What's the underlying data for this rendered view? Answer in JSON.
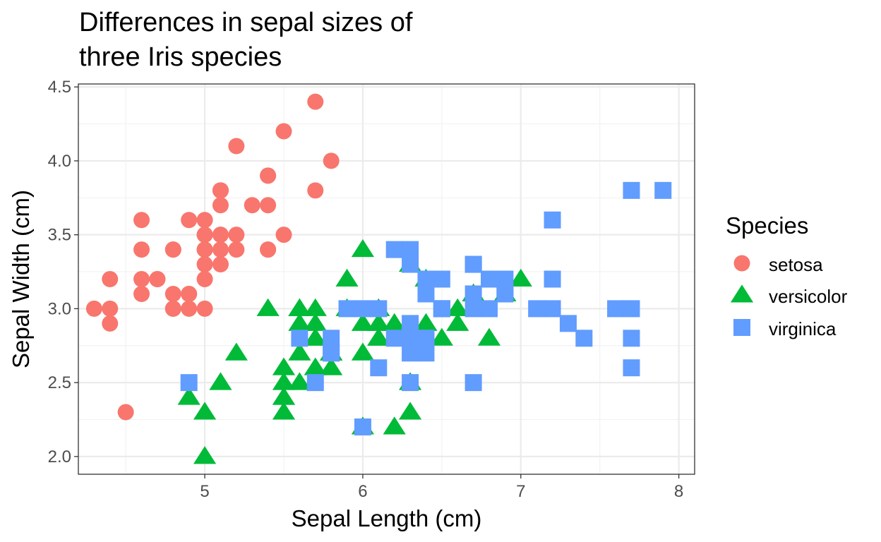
{
  "chart_data": {
    "type": "scatter",
    "title_lines": [
      "Differences in sepal sizes of",
      "three Iris species"
    ],
    "xlabel": "Sepal Length (cm)",
    "ylabel": "Sepal Width (cm)",
    "xlim": [
      4.2,
      8.1
    ],
    "ylim": [
      1.88,
      4.52
    ],
    "xticks": [
      5,
      6,
      7,
      8
    ],
    "xtick_labels": [
      "5",
      "6",
      "7",
      "8"
    ],
    "yticks": [
      2.0,
      2.5,
      3.0,
      3.5,
      4.0,
      4.5
    ],
    "ytick_labels": [
      "2.0",
      "2.5",
      "3.0",
      "3.5",
      "4.0",
      "4.5"
    ],
    "grid": true,
    "legend": {
      "title": "Species",
      "position": "right"
    },
    "series": [
      {
        "name": "setosa",
        "color": "#F8766D",
        "shape": "circle",
        "points": [
          [
            5.1,
            3.5
          ],
          [
            4.9,
            3.0
          ],
          [
            4.7,
            3.2
          ],
          [
            4.6,
            3.1
          ],
          [
            5.0,
            3.6
          ],
          [
            5.4,
            3.9
          ],
          [
            4.6,
            3.4
          ],
          [
            5.0,
            3.4
          ],
          [
            4.4,
            2.9
          ],
          [
            4.9,
            3.1
          ],
          [
            5.4,
            3.7
          ],
          [
            4.8,
            3.4
          ],
          [
            4.8,
            3.0
          ],
          [
            4.3,
            3.0
          ],
          [
            5.8,
            4.0
          ],
          [
            5.7,
            4.4
          ],
          [
            5.4,
            3.9
          ],
          [
            5.1,
            3.5
          ],
          [
            5.7,
            3.8
          ],
          [
            5.1,
            3.8
          ],
          [
            5.4,
            3.4
          ],
          [
            5.1,
            3.7
          ],
          [
            4.6,
            3.6
          ],
          [
            5.1,
            3.3
          ],
          [
            4.8,
            3.4
          ],
          [
            5.0,
            3.0
          ],
          [
            5.0,
            3.4
          ],
          [
            5.2,
            3.5
          ],
          [
            5.2,
            3.4
          ],
          [
            4.7,
            3.2
          ],
          [
            4.8,
            3.1
          ],
          [
            5.4,
            3.4
          ],
          [
            5.2,
            4.1
          ],
          [
            5.5,
            4.2
          ],
          [
            4.9,
            3.1
          ],
          [
            5.0,
            3.2
          ],
          [
            5.5,
            3.5
          ],
          [
            4.9,
            3.6
          ],
          [
            4.4,
            3.0
          ],
          [
            5.1,
            3.4
          ],
          [
            5.0,
            3.5
          ],
          [
            4.5,
            2.3
          ],
          [
            4.4,
            3.2
          ],
          [
            5.0,
            3.5
          ],
          [
            5.1,
            3.8
          ],
          [
            4.8,
            3.0
          ],
          [
            5.1,
            3.8
          ],
          [
            4.6,
            3.2
          ],
          [
            5.3,
            3.7
          ],
          [
            5.0,
            3.3
          ]
        ]
      },
      {
        "name": "versicolor",
        "color": "#00BA38",
        "shape": "triangle",
        "points": [
          [
            7.0,
            3.2
          ],
          [
            6.4,
            3.2
          ],
          [
            6.9,
            3.1
          ],
          [
            5.5,
            2.3
          ],
          [
            6.5,
            2.8
          ],
          [
            5.7,
            2.8
          ],
          [
            6.3,
            3.3
          ],
          [
            4.9,
            2.4
          ],
          [
            6.6,
            2.9
          ],
          [
            5.2,
            2.7
          ],
          [
            5.0,
            2.0
          ],
          [
            5.9,
            3.0
          ],
          [
            6.0,
            2.2
          ],
          [
            6.1,
            2.9
          ],
          [
            5.6,
            2.9
          ],
          [
            6.7,
            3.1
          ],
          [
            5.6,
            3.0
          ],
          [
            5.8,
            2.7
          ],
          [
            6.2,
            2.2
          ],
          [
            5.6,
            2.5
          ],
          [
            5.9,
            3.2
          ],
          [
            6.1,
            2.8
          ],
          [
            6.3,
            2.5
          ],
          [
            6.1,
            2.8
          ],
          [
            6.4,
            2.9
          ],
          [
            6.6,
            3.0
          ],
          [
            6.8,
            2.8
          ],
          [
            6.7,
            3.0
          ],
          [
            6.0,
            2.9
          ],
          [
            5.7,
            2.6
          ],
          [
            5.5,
            2.4
          ],
          [
            5.5,
            2.4
          ],
          [
            5.8,
            2.7
          ],
          [
            6.0,
            2.7
          ],
          [
            5.4,
            3.0
          ],
          [
            6.0,
            3.4
          ],
          [
            6.7,
            3.1
          ],
          [
            6.3,
            2.3
          ],
          [
            5.6,
            3.0
          ],
          [
            5.5,
            2.5
          ],
          [
            5.5,
            2.6
          ],
          [
            6.1,
            3.0
          ],
          [
            5.8,
            2.6
          ],
          [
            5.0,
            2.3
          ],
          [
            5.6,
            2.7
          ],
          [
            5.7,
            3.0
          ],
          [
            5.7,
            2.9
          ],
          [
            6.2,
            2.9
          ],
          [
            5.1,
            2.5
          ],
          [
            5.7,
            2.8
          ]
        ]
      },
      {
        "name": "virginica",
        "color": "#619CFF",
        "shape": "square",
        "points": [
          [
            6.3,
            3.3
          ],
          [
            5.8,
            2.7
          ],
          [
            7.1,
            3.0
          ],
          [
            6.3,
            2.9
          ],
          [
            6.5,
            3.0
          ],
          [
            7.6,
            3.0
          ],
          [
            4.9,
            2.5
          ],
          [
            7.3,
            2.9
          ],
          [
            6.7,
            2.5
          ],
          [
            7.2,
            3.6
          ],
          [
            6.5,
            3.2
          ],
          [
            6.4,
            2.7
          ],
          [
            6.8,
            3.0
          ],
          [
            5.7,
            2.5
          ],
          [
            5.8,
            2.8
          ],
          [
            6.4,
            3.2
          ],
          [
            6.5,
            3.0
          ],
          [
            7.7,
            3.8
          ],
          [
            7.7,
            2.6
          ],
          [
            6.0,
            2.2
          ],
          [
            6.9,
            3.2
          ],
          [
            5.6,
            2.8
          ],
          [
            7.7,
            2.8
          ],
          [
            6.3,
            2.7
          ],
          [
            6.7,
            3.3
          ],
          [
            7.2,
            3.2
          ],
          [
            6.2,
            2.8
          ],
          [
            6.1,
            3.0
          ],
          [
            6.4,
            2.8
          ],
          [
            7.2,
            3.0
          ],
          [
            7.4,
            2.8
          ],
          [
            7.9,
            3.8
          ],
          [
            6.4,
            2.8
          ],
          [
            6.3,
            2.8
          ],
          [
            6.1,
            2.6
          ],
          [
            7.7,
            3.0
          ],
          [
            6.3,
            3.4
          ],
          [
            6.4,
            3.1
          ],
          [
            6.0,
            3.0
          ],
          [
            6.9,
            3.1
          ],
          [
            6.7,
            3.1
          ],
          [
            6.9,
            3.1
          ],
          [
            5.8,
            2.7
          ],
          [
            6.8,
            3.2
          ],
          [
            6.7,
            3.3
          ],
          [
            6.7,
            3.0
          ],
          [
            6.3,
            2.5
          ],
          [
            6.5,
            3.0
          ],
          [
            6.2,
            3.4
          ],
          [
            5.9,
            3.0
          ]
        ]
      }
    ]
  }
}
